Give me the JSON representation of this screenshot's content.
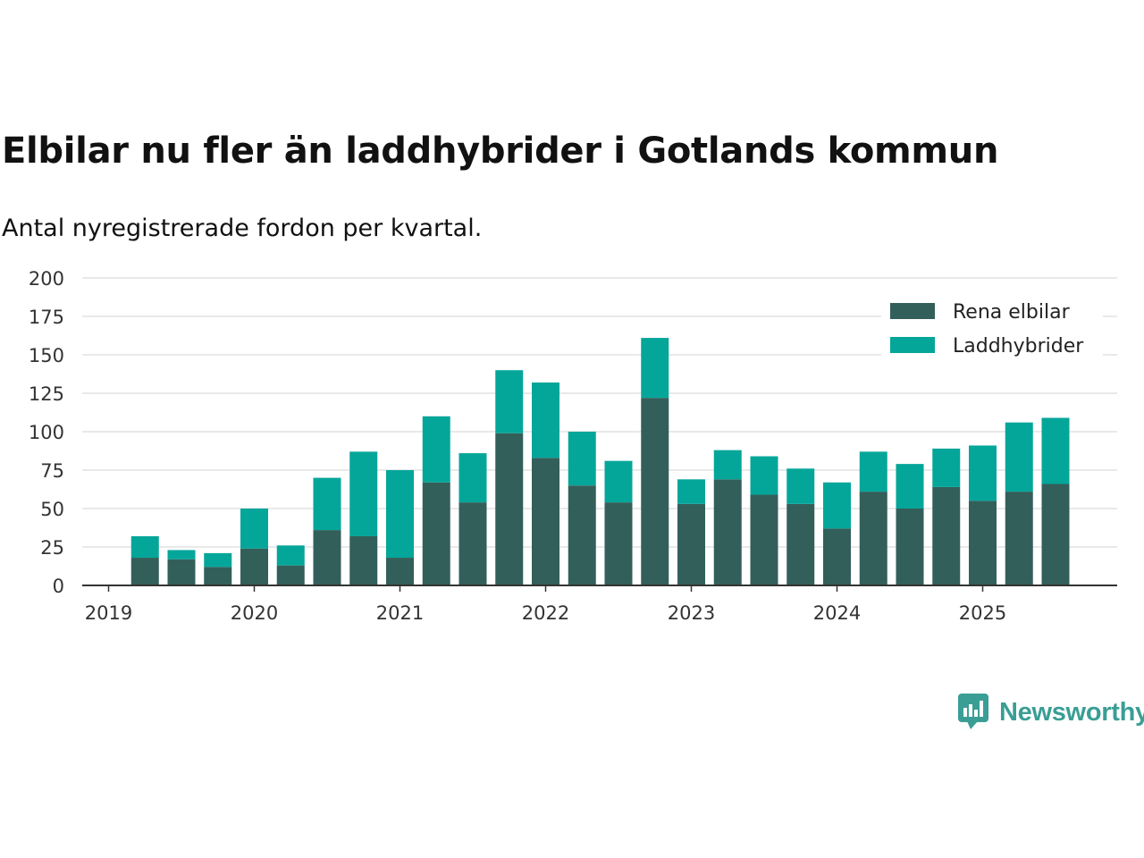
{
  "title": "Elbilar nu fler än laddhybrider i Gotlands kommun",
  "subtitle": "Antal nyregistrerade fordon per kvartal.",
  "brand": {
    "name": "Newsworthy",
    "color": "#3a9e95"
  },
  "chart_data": {
    "type": "bar",
    "stacked": true,
    "title": "Elbilar nu fler än laddhybrider i Gotlands kommun",
    "subtitle": "Antal nyregistrerade fordon per kvartal.",
    "xlabel": "",
    "ylabel": "",
    "ylim": [
      0,
      200
    ],
    "yticks": [
      0,
      25,
      50,
      75,
      100,
      125,
      150,
      175,
      200
    ],
    "xtick_labels": [
      "2019",
      "2020",
      "2021",
      "2022",
      "2023",
      "2024",
      "2025"
    ],
    "grid": true,
    "legend_position": "top-right",
    "categories": [
      "2019 Q2",
      "2019 Q3",
      "2019 Q4",
      "2020 Q1",
      "2020 Q2",
      "2020 Q3",
      "2020 Q4",
      "2021 Q1",
      "2021 Q2",
      "2021 Q3",
      "2021 Q4",
      "2022 Q1",
      "2022 Q2",
      "2022 Q3",
      "2022 Q4",
      "2023 Q1",
      "2023 Q2",
      "2023 Q3",
      "2023 Q4",
      "2024 Q1",
      "2024 Q2",
      "2024 Q3",
      "2024 Q4",
      "2025 Q1",
      "2025 Q2",
      "2025 Q3"
    ],
    "series": [
      {
        "name": "Rena elbilar",
        "color": "#335f5a",
        "values": [
          18,
          17,
          12,
          24,
          13,
          36,
          32,
          18,
          67,
          54,
          99,
          83,
          65,
          54,
          122,
          53,
          69,
          59,
          53,
          37,
          61,
          50,
          64,
          55,
          61,
          66
        ]
      },
      {
        "name": "Laddhybrider",
        "color": "#05a69a",
        "values": [
          14,
          6,
          9,
          26,
          13,
          34,
          55,
          57,
          43,
          32,
          41,
          49,
          35,
          27,
          39,
          16,
          19,
          25,
          23,
          30,
          26,
          29,
          25,
          36,
          45,
          43
        ]
      }
    ]
  }
}
